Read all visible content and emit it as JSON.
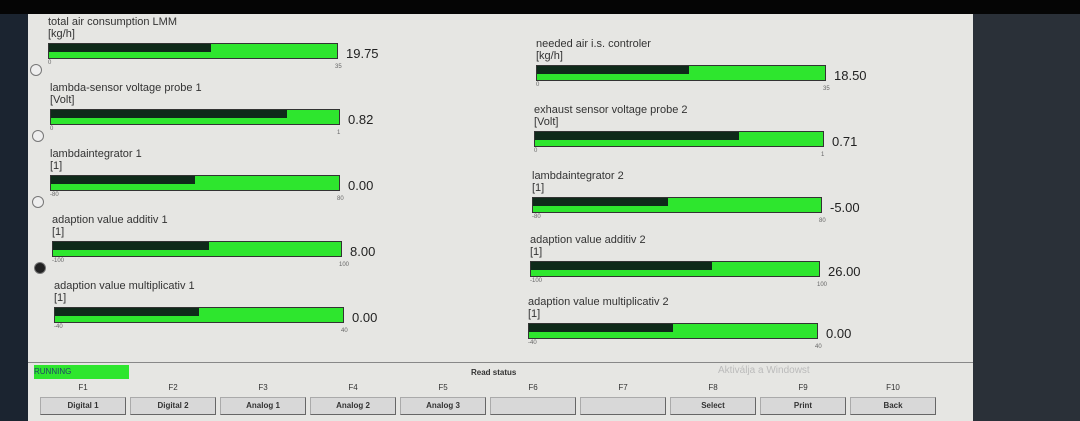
{
  "gauges": [
    {
      "label": "total air consumption LMM",
      "unit": "[kg/h]",
      "min": "0",
      "max": "35",
      "value": "19.75",
      "fraction": 0.564,
      "radio": "off"
    },
    {
      "label": "lambda-sensor voltage probe 1",
      "unit": "[Volt]",
      "min": "0",
      "max": "1",
      "value": "0.82",
      "fraction": 0.82,
      "radio": "off"
    },
    {
      "label": "lambdaintegrator 1",
      "unit": "[1]",
      "min": "-80",
      "max": "80",
      "value": "0.00",
      "fraction": 0.5,
      "radio": "off"
    },
    {
      "label": "adaption value additiv 1",
      "unit": "[1]",
      "min": "-100",
      "max": "100",
      "value": "8.00",
      "fraction": 0.54,
      "radio": "on"
    },
    {
      "label": "adaption value multiplicativ 1",
      "unit": "[1]",
      "min": "-40",
      "max": "40",
      "value": "0.00",
      "fraction": 0.5
    },
    {
      "label": "needed air i.s. controler",
      "unit": "[kg/h]",
      "min": "0",
      "max": "35",
      "value": "18.50",
      "fraction": 0.529
    },
    {
      "label": "exhaust sensor voltage probe 2",
      "unit": "[Volt]",
      "min": "0",
      "max": "1",
      "value": "0.71",
      "fraction": 0.71
    },
    {
      "label": "lambdaintegrator 2",
      "unit": "[1]",
      "min": "-80",
      "max": "80",
      "value": "-5.00",
      "fraction": 0.469
    },
    {
      "label": "adaption value additiv 2",
      "unit": "[1]",
      "min": "-100",
      "max": "100",
      "value": "26.00",
      "fraction": 0.63
    },
    {
      "label": "adaption value multiplicativ 2",
      "unit": "[1]",
      "min": "-40",
      "max": "40",
      "value": "0.00",
      "fraction": 0.5
    }
  ],
  "status": "RUNNING",
  "read_status": "Read status",
  "fkeys": [
    {
      "key": "F1",
      "label": "Digital 1"
    },
    {
      "key": "F2",
      "label": "Digital 2"
    },
    {
      "key": "F3",
      "label": "Analog 1"
    },
    {
      "key": "F4",
      "label": "Analog 2"
    },
    {
      "key": "F5",
      "label": "Analog 3"
    },
    {
      "key": "F6",
      "label": ""
    },
    {
      "key": "F7",
      "label": ""
    },
    {
      "key": "F8",
      "label": "Select"
    },
    {
      "key": "F9",
      "label": "Print"
    },
    {
      "key": "F10",
      "label": "Back"
    }
  ],
  "watermark": "Aktiválja a Windowst",
  "colors": {
    "bar_green": "#2ee62e",
    "bar_dark": "#0f2a1a"
  }
}
